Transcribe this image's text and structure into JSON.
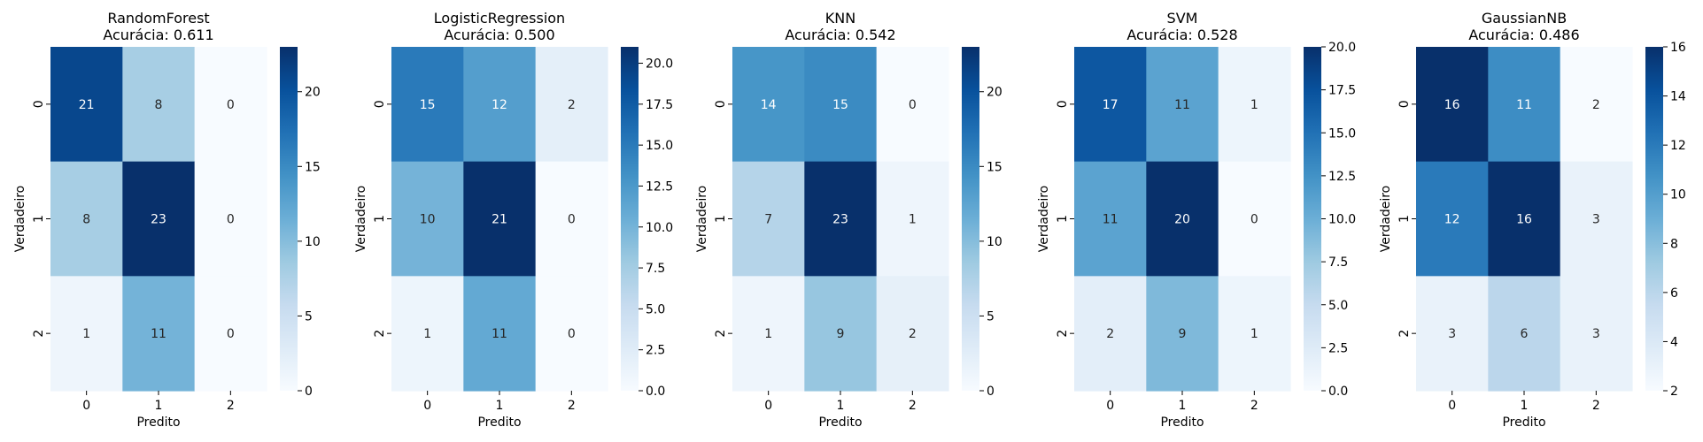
{
  "colormap": {
    "name": "Blues",
    "stops": [
      "#f7fbff",
      "#deebf7",
      "#c6dbef",
      "#9ecae1",
      "#6baed6",
      "#4292c6",
      "#2171b5",
      "#08519c",
      "#08306b"
    ]
  },
  "chart_data": [
    {
      "type": "heatmap",
      "title": "RandomForest",
      "subtitle": "Acurácia: 0.611",
      "xlabel": "Predito",
      "ylabel": "Verdadeiro",
      "x_ticks": [
        "0",
        "1",
        "2"
      ],
      "y_ticks": [
        "0",
        "1",
        "2"
      ],
      "values": [
        [
          21,
          8,
          0
        ],
        [
          8,
          23,
          0
        ],
        [
          1,
          11,
          0
        ]
      ],
      "vmin": 0,
      "vmax": 23,
      "colorbar_ticks": [
        "0",
        "5",
        "10",
        "15",
        "20"
      ]
    },
    {
      "type": "heatmap",
      "title": "LogisticRegression",
      "subtitle": "Acurácia: 0.500",
      "xlabel": "Predito",
      "ylabel": "Verdadeiro",
      "x_ticks": [
        "0",
        "1",
        "2"
      ],
      "y_ticks": [
        "0",
        "1",
        "2"
      ],
      "values": [
        [
          15,
          12,
          2
        ],
        [
          10,
          21,
          0
        ],
        [
          1,
          11,
          0
        ]
      ],
      "vmin": 0,
      "vmax": 21,
      "colorbar_ticks": [
        "0.0",
        "2.5",
        "5.0",
        "7.5",
        "10.0",
        "12.5",
        "15.0",
        "17.5",
        "20.0"
      ]
    },
    {
      "type": "heatmap",
      "title": "KNN",
      "subtitle": "Acurácia: 0.542",
      "xlabel": "Predito",
      "ylabel": "Verdadeiro",
      "x_ticks": [
        "0",
        "1",
        "2"
      ],
      "y_ticks": [
        "0",
        "1",
        "2"
      ],
      "values": [
        [
          14,
          15,
          0
        ],
        [
          7,
          23,
          1
        ],
        [
          1,
          9,
          2
        ]
      ],
      "vmin": 0,
      "vmax": 23,
      "colorbar_ticks": [
        "0",
        "5",
        "10",
        "15",
        "20"
      ]
    },
    {
      "type": "heatmap",
      "title": "SVM",
      "subtitle": "Acurácia: 0.528",
      "xlabel": "Predito",
      "ylabel": "Verdadeiro",
      "x_ticks": [
        "0",
        "1",
        "2"
      ],
      "y_ticks": [
        "0",
        "1",
        "2"
      ],
      "values": [
        [
          17,
          11,
          1
        ],
        [
          11,
          20,
          0
        ],
        [
          2,
          9,
          1
        ]
      ],
      "vmin": 0,
      "vmax": 20,
      "colorbar_ticks": [
        "0.0",
        "2.5",
        "5.0",
        "7.5",
        "10.0",
        "12.5",
        "15.0",
        "17.5",
        "20.0"
      ]
    },
    {
      "type": "heatmap",
      "title": "GaussianNB",
      "subtitle": "Acurácia: 0.486",
      "xlabel": "Predito",
      "ylabel": "Verdadeiro",
      "x_ticks": [
        "0",
        "1",
        "2"
      ],
      "y_ticks": [
        "0",
        "1",
        "2"
      ],
      "values": [
        [
          16,
          11,
          2
        ],
        [
          12,
          16,
          3
        ],
        [
          3,
          6,
          3
        ]
      ],
      "vmin": 2,
      "vmax": 16,
      "colorbar_ticks": [
        "2",
        "4",
        "6",
        "8",
        "10",
        "12",
        "14",
        "16"
      ]
    }
  ]
}
